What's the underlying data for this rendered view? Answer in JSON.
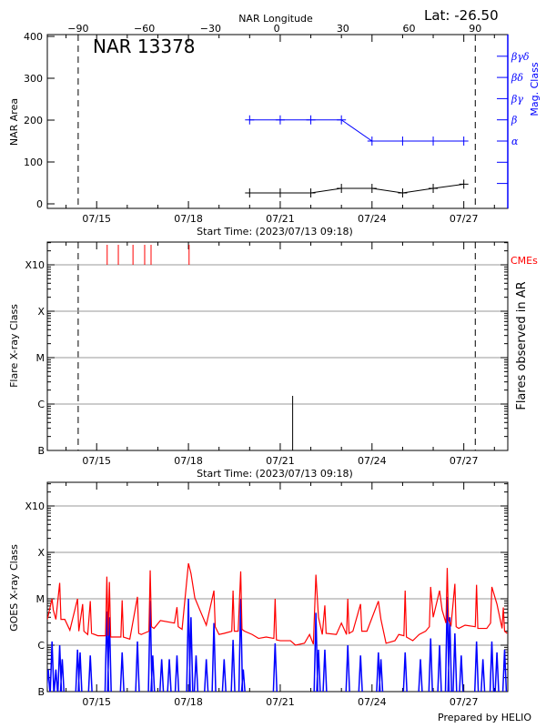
{
  "colors": {
    "area": "#000000",
    "mag_class": "#0000ff",
    "cme": "#ff0000",
    "flare": "#000000",
    "goes_long": "#ff0000",
    "goes_short": "#0000ff",
    "grid": "#999999"
  },
  "footer": "Prepared by HELIO",
  "chart_data": [
    {
      "type": "line",
      "title": "NAR 13378",
      "annotation": "Lat: -26.50",
      "top_xlabel": "NAR Longitude",
      "top_xticks": [
        -90,
        -60,
        -30,
        0,
        30,
        60,
        90
      ],
      "dashed_longitudes": [
        -90,
        90
      ],
      "xlabel": "Start Time: (2023/07/13 09:18)",
      "xlim": [
        "2023-07-13T09:18",
        "2023-07-28T10:30"
      ],
      "xtick_labels": [
        "07/15",
        "07/18",
        "07/21",
        "07/24",
        "07/27"
      ],
      "ylabel": "NAR Area",
      "ylim": [
        0,
        400
      ],
      "yticks": [
        0,
        100,
        200,
        300,
        400
      ],
      "y2label": "Mag. Class",
      "y2_ticks": [
        "α",
        "β",
        "βγ",
        "βδ",
        "βγδ"
      ],
      "series": [
        {
          "key": "area",
          "x": [
            "2023-07-20T00:00",
            "2023-07-21T00:00",
            "2023-07-22T00:00",
            "2023-07-23T00:00",
            "2023-07-24T00:00",
            "2023-07-25T00:00",
            "2023-07-26T00:00",
            "2023-07-27T00:00"
          ],
          "values": [
            26,
            26,
            26,
            37,
            37,
            26,
            37,
            47
          ]
        },
        {
          "key": "mag_class",
          "x": [
            "2023-07-20T00:00",
            "2023-07-21T00:00",
            "2023-07-22T00:00",
            "2023-07-23T00:00",
            "2023-07-24T00:00",
            "2023-07-25T00:00",
            "2023-07-26T00:00",
            "2023-07-27T00:00"
          ],
          "values": [
            "β",
            "β",
            "β",
            "β",
            "α",
            "α",
            "α",
            "α"
          ]
        }
      ]
    },
    {
      "type": "bar",
      "xlabel": "Start Time: (2023/07/13 09:18)",
      "xlim": [
        "2023-07-13T09:18",
        "2023-07-28T10:30"
      ],
      "xtick_labels": [
        "07/15",
        "07/18",
        "07/21",
        "07/24",
        "07/27"
      ],
      "ylabel": "Flare X-ray Class",
      "y2label": "Flares observed in AR",
      "ytick_labels": [
        "B",
        "C",
        "M",
        "X",
        "X10"
      ],
      "ylim": [
        "B1",
        "X32"
      ],
      "grid": true,
      "cme_label": "CMEs",
      "cmes": [
        "2023-07-15T08:15",
        "2023-07-15T17:00",
        "2023-07-16T04:30",
        "2023-07-16T13:40",
        "2023-07-16T18:40",
        "2023-07-18T00:30"
      ],
      "flares": [
        {
          "time": "2023-07-21T09:45",
          "class": "C1.5"
        }
      ]
    },
    {
      "type": "line",
      "xlim": [
        "2023-07-13T09:18",
        "2023-07-28T10:30"
      ],
      "xtick_labels": [
        "07/15",
        "07/18",
        "07/21",
        "07/24",
        "07/27"
      ],
      "ylabel": "GOES X-ray Class",
      "ytick_labels": [
        "B",
        "C",
        "M",
        "X",
        "X10"
      ],
      "ylim": [
        "B1",
        "X32"
      ],
      "grid": true,
      "series": [
        {
          "key": "goes_long",
          "points": [
            [
              "2023-07-13T09:18",
              "C3.6"
            ],
            [
              "2023-07-13T13:00",
              "M1.0"
            ],
            [
              "2023-07-13T14:00",
              "C5.7"
            ],
            [
              "2023-07-13T16:00",
              "C3.6"
            ],
            [
              "2023-07-13T19:00",
              "M2.2"
            ],
            [
              "2023-07-13T20:00",
              "C3.6"
            ],
            [
              "2023-07-13T23:00",
              "C3.6"
            ],
            [
              "2023-07-14T03:00",
              "C2.1"
            ],
            [
              "2023-07-14T09:00",
              "M1.0"
            ],
            [
              "2023-07-14T10:00",
              "C2.0"
            ],
            [
              "2023-07-14T13:00",
              "C7.7"
            ],
            [
              "2023-07-14T14:00",
              "C2.0"
            ],
            [
              "2023-07-14T17:00",
              "C1.7"
            ],
            [
              "2023-07-14T19:00",
              "C8.9"
            ],
            [
              "2023-07-14T20:00",
              "C1.8"
            ],
            [
              "2023-07-15T01:00",
              "C1.6"
            ],
            [
              "2023-07-15T07:00",
              "C1.6"
            ],
            [
              "2023-07-15T08:00",
              "M3.0"
            ],
            [
              "2023-07-15T09:00",
              "C1.6"
            ],
            [
              "2023-07-15T10:00",
              "M2.3"
            ],
            [
              "2023-07-15T11:00",
              "C1.5"
            ],
            [
              "2023-07-15T12:00",
              "C1.5"
            ],
            [
              "2023-07-15T19:00",
              "C1.5"
            ],
            [
              "2023-07-15T20:00",
              "C9.3"
            ],
            [
              "2023-07-15T21:00",
              "C1.5"
            ],
            [
              "2023-07-16T02:00",
              "C1.35"
            ],
            [
              "2023-07-16T08:00",
              "M1.1"
            ],
            [
              "2023-07-16T09:00",
              "C1.8"
            ],
            [
              "2023-07-16T11:00",
              "C1.7"
            ],
            [
              "2023-07-16T17:00",
              "C2.0"
            ],
            [
              "2023-07-16T18:00",
              "M4.1"
            ],
            [
              "2023-07-16T19:00",
              "C2.5"
            ],
            [
              "2023-07-16T21:00",
              "C2.3"
            ],
            [
              "2023-07-17T02:00",
              "C3.4"
            ],
            [
              "2023-07-17T13:00",
              "C3.0"
            ],
            [
              "2023-07-17T15:00",
              "C6.6"
            ],
            [
              "2023-07-17T16:00",
              "C2.5"
            ],
            [
              "2023-07-17T19:00",
              "C2.2"
            ],
            [
              "2023-07-18T00:00",
              "M5.8"
            ],
            [
              "2023-07-18T02:00",
              "M3.5"
            ],
            [
              "2023-07-18T05:00",
              "M1.05"
            ],
            [
              "2023-07-18T09:00",
              "C5.7"
            ],
            [
              "2023-07-18T14:00",
              "C2.7"
            ],
            [
              "2023-07-18T20:00",
              "M1.5"
            ],
            [
              "2023-07-18T21:00",
              "C2.5"
            ],
            [
              "2023-07-19T00:00",
              "C1.7"
            ],
            [
              "2023-07-19T04:00",
              "C1.8"
            ],
            [
              "2023-07-19T10:00",
              "C2.0"
            ],
            [
              "2023-07-19T11:00",
              "M1.5"
            ],
            [
              "2023-07-19T12:00",
              "C2.0"
            ],
            [
              "2023-07-19T15:00",
              "C2.0"
            ],
            [
              "2023-07-19T17:00",
              "M3.9"
            ],
            [
              "2023-07-19T18:00",
              "C2.2"
            ],
            [
              "2023-07-19T20:00",
              "C2.0"
            ],
            [
              "2023-07-20T02:00",
              "C1.7"
            ],
            [
              "2023-07-20T07:00",
              "C1.4"
            ],
            [
              "2023-07-20T13:00",
              "C1.5"
            ],
            [
              "2023-07-20T19:00",
              "C1.4"
            ],
            [
              "2023-07-20T20:00",
              "M1.0"
            ],
            [
              "2023-07-20T21:00",
              "C1.3"
            ],
            [
              "2023-07-21T00:00",
              "C1.25"
            ],
            [
              "2023-07-21T08:00",
              "C1.25"
            ],
            [
              "2023-07-21T12:00",
              "C1.0"
            ],
            [
              "2023-07-21T19:00",
              "C1.1"
            ],
            [
              "2023-07-21T23:00",
              "C1.7"
            ],
            [
              "2023-07-22T02:00",
              "C1.05"
            ],
            [
              "2023-07-22T04:00",
              "M3.3"
            ],
            [
              "2023-07-22T06:00",
              "C4.0"
            ],
            [
              "2023-07-22T09:00",
              "C1.7"
            ],
            [
              "2023-07-22T11:00",
              "C7.2"
            ],
            [
              "2023-07-22T12:00",
              "C1.8"
            ],
            [
              "2023-07-22T20:00",
              "C1.7"
            ],
            [
              "2023-07-23T00:00",
              "C3.0"
            ],
            [
              "2023-07-23T04:00",
              "C1.7"
            ],
            [
              "2023-07-23T05:00",
              "M1.0"
            ],
            [
              "2023-07-23T06:00",
              "C1.8"
            ],
            [
              "2023-07-23T09:00",
              "C2.0"
            ],
            [
              "2023-07-23T15:00",
              "C7.7"
            ],
            [
              "2023-07-23T16:00",
              "C2.0"
            ],
            [
              "2023-07-23T20:00",
              "C2.0"
            ],
            [
              "2023-07-24T05:00",
              "C8.9"
            ],
            [
              "2023-07-24T07:00",
              "C3.6"
            ],
            [
              "2023-07-24T11:00",
              "C1.1"
            ],
            [
              "2023-07-24T18:00",
              "C1.25"
            ],
            [
              "2023-07-24T21:00",
              "C1.7"
            ],
            [
              "2023-07-25T01:00",
              "C1.6"
            ],
            [
              "2023-07-25T02:00",
              "M1.5"
            ],
            [
              "2023-07-25T03:00",
              "C1.5"
            ],
            [
              "2023-07-25T08:00",
              "C1.25"
            ],
            [
              "2023-07-25T13:00",
              "C1.7"
            ],
            [
              "2023-07-25T18:00",
              "C2.0"
            ],
            [
              "2023-07-25T21:00",
              "C2.5"
            ],
            [
              "2023-07-25T22:00",
              "M1.8"
            ],
            [
              "2023-07-26T00:00",
              "C4.0"
            ],
            [
              "2023-07-26T05:00",
              "M1.5"
            ],
            [
              "2023-07-26T07:00",
              "C5.7"
            ],
            [
              "2023-07-26T10:00",
              "C3.0"
            ],
            [
              "2023-07-26T11:00",
              "M4.6"
            ],
            [
              "2023-07-26T12:00",
              "C3.5"
            ],
            [
              "2023-07-26T14:00",
              "C2.7"
            ],
            [
              "2023-07-26T17:00",
              "M2.1"
            ],
            [
              "2023-07-26T18:00",
              "C2.5"
            ],
            [
              "2023-07-26T20:00",
              "C2.3"
            ],
            [
              "2023-07-27T01:00",
              "C2.7"
            ],
            [
              "2023-07-27T09:00",
              "C2.5"
            ],
            [
              "2023-07-27T10:00",
              "M2.0"
            ],
            [
              "2023-07-27T11:00",
              "C2.3"
            ],
            [
              "2023-07-27T18:00",
              "C2.3"
            ],
            [
              "2023-07-27T21:00",
              "C3.0"
            ],
            [
              "2023-07-27T22:00",
              "M1.8"
            ],
            [
              "2023-07-28T02:00",
              "C7.7"
            ],
            [
              "2023-07-28T06:00",
              "C2.3"
            ],
            [
              "2023-07-28T07:00",
              "C6.5"
            ],
            [
              "2023-07-28T08:00",
              "C2.0"
            ],
            [
              "2023-07-28T10:00",
              "C1.8"
            ]
          ]
        },
        {
          "key": "goes_short",
          "peaks": [
            [
              "2023-07-13T10:00",
              "B3"
            ],
            [
              "2023-07-13T13:00",
              "C1.2"
            ],
            [
              "2023-07-13T16:00",
              "B3"
            ],
            [
              "2023-07-13T19:00",
              "C1.0"
            ],
            [
              "2023-07-13T21:00",
              "B5"
            ],
            [
              "2023-07-14T09:00",
              "B8"
            ],
            [
              "2023-07-14T11:00",
              "B7"
            ],
            [
              "2023-07-14T19:00",
              "B6"
            ],
            [
              "2023-07-15T08:00",
              "C5.3"
            ],
            [
              "2023-07-15T10:00",
              "C4.0"
            ],
            [
              "2023-07-15T20:00",
              "B7"
            ],
            [
              "2023-07-16T08:00",
              "C1.2"
            ],
            [
              "2023-07-16T18:00",
              "C9.0"
            ],
            [
              "2023-07-16T20:00",
              "B6"
            ],
            [
              "2023-07-17T03:00",
              "B5"
            ],
            [
              "2023-07-17T09:00",
              "B5"
            ],
            [
              "2023-07-17T15:00",
              "B6"
            ],
            [
              "2023-07-18T00:00",
              "M1.0"
            ],
            [
              "2023-07-18T02:00",
              "C4.0"
            ],
            [
              "2023-07-18T06:00",
              "B6"
            ],
            [
              "2023-07-18T14:00",
              "B5"
            ],
            [
              "2023-07-18T20:00",
              "C3.0"
            ],
            [
              "2023-07-19T04:00",
              "B5"
            ],
            [
              "2023-07-19T11:00",
              "C1.3"
            ],
            [
              "2023-07-19T17:00",
              "M1.0"
            ],
            [
              "2023-07-19T19:00",
              "B3"
            ],
            [
              "2023-07-20T20:00",
              "C1.1"
            ],
            [
              "2023-07-22T04:00",
              "C5.0"
            ],
            [
              "2023-07-22T06:00",
              "B8"
            ],
            [
              "2023-07-22T11:00",
              "B8"
            ],
            [
              "2023-07-23T05:00",
              "C1.0"
            ],
            [
              "2023-07-23T15:00",
              "B6"
            ],
            [
              "2023-07-24T05:00",
              "B7"
            ],
            [
              "2023-07-24T07:00",
              "B5"
            ],
            [
              "2023-07-25T02:00",
              "B7"
            ],
            [
              "2023-07-25T14:00",
              "B5"
            ],
            [
              "2023-07-25T22:00",
              "C1.4"
            ],
            [
              "2023-07-26T05:00",
              "C1.0"
            ],
            [
              "2023-07-26T11:00",
              "M1.1"
            ],
            [
              "2023-07-26T13:00",
              "C4.0"
            ],
            [
              "2023-07-26T17:00",
              "C1.8"
            ],
            [
              "2023-07-26T22:00",
              "B6"
            ],
            [
              "2023-07-27T10:00",
              "C1.2"
            ],
            [
              "2023-07-27T15:00",
              "B5"
            ],
            [
              "2023-07-27T22:00",
              "C1.2"
            ],
            [
              "2023-07-28T02:00",
              "B7"
            ],
            [
              "2023-07-28T08:00",
              "B8"
            ]
          ]
        }
      ]
    }
  ]
}
